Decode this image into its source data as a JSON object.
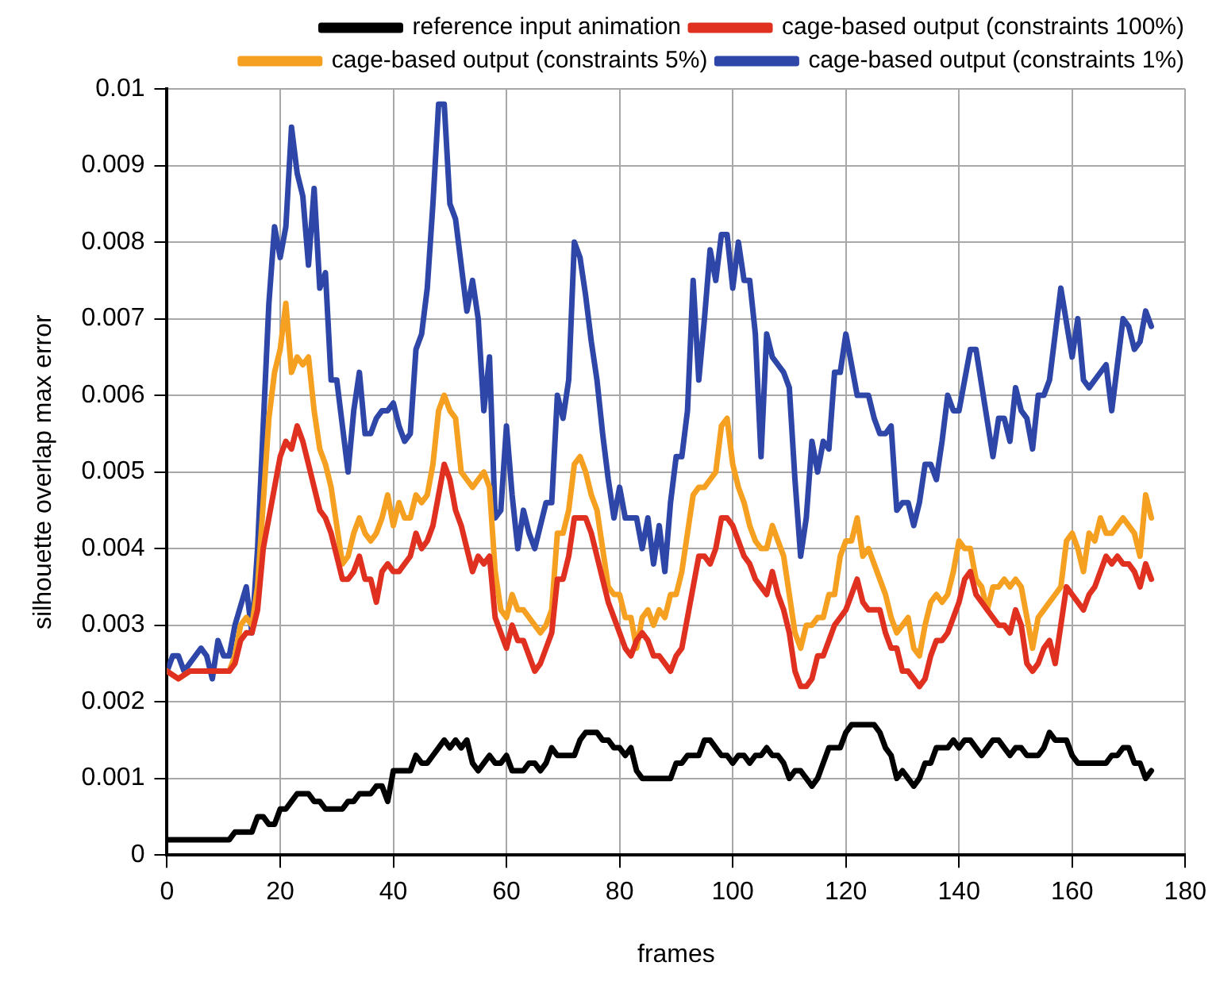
{
  "chart_data": {
    "type": "line",
    "xlabel": "frames",
    "ylabel": "silhouette overlap max error",
    "xlim": [
      0,
      180
    ],
    "xticks": [
      0,
      20,
      40,
      60,
      80,
      100,
      120,
      140,
      160,
      180
    ],
    "ylim": [
      0,
      0.01
    ],
    "yticks": [
      0,
      0.001,
      0.002,
      0.003,
      0.004,
      0.005,
      0.006,
      0.007,
      0.008,
      0.009,
      0.01
    ],
    "grid": true,
    "legend": "top right",
    "marker": "none",
    "line_style": "solid",
    "series": [
      {
        "name": "reference input animation",
        "color": "#000000",
        "x": [
          0,
          2,
          4,
          6,
          8,
          10,
          11,
          12,
          13,
          14,
          15,
          16,
          17,
          18,
          19,
          20,
          21,
          22,
          23,
          24,
          25,
          26,
          27,
          28,
          29,
          30,
          31,
          32,
          33,
          34,
          35,
          36,
          37,
          38,
          39,
          40,
          41,
          42,
          43,
          44,
          45,
          46,
          47,
          48,
          49,
          50,
          51,
          52,
          53,
          54,
          55,
          56,
          57,
          58,
          59,
          60,
          61,
          62,
          63,
          64,
          65,
          66,
          67,
          68,
          69,
          70,
          71,
          72,
          73,
          74,
          75,
          76,
          77,
          78,
          79,
          80,
          81,
          82,
          83,
          84,
          85,
          86,
          87,
          88,
          89,
          90,
          91,
          92,
          93,
          94,
          95,
          96,
          97,
          98,
          99,
          100,
          101,
          102,
          103,
          104,
          105,
          106,
          107,
          108,
          109,
          110,
          111,
          112,
          113,
          114,
          115,
          116,
          117,
          118,
          119,
          120,
          121,
          122,
          123,
          124,
          125,
          126,
          127,
          128,
          129,
          130,
          131,
          132,
          133,
          134,
          135,
          136,
          137,
          138,
          139,
          140,
          141,
          142,
          143,
          144,
          145,
          146,
          147,
          148,
          149,
          150,
          151,
          152,
          153,
          154,
          155,
          156,
          157,
          158,
          159,
          160,
          161,
          162,
          163,
          164,
          165,
          166,
          167,
          168,
          169,
          170,
          171,
          172,
          173,
          174
        ],
        "values": [
          0.0002,
          0.0002,
          0.0002,
          0.0002,
          0.0002,
          0.0002,
          0.0002,
          0.0003,
          0.0003,
          0.0003,
          0.0003,
          0.0005,
          0.0005,
          0.0004,
          0.0004,
          0.0006,
          0.0006,
          0.0007,
          0.0008,
          0.0008,
          0.0008,
          0.0007,
          0.0007,
          0.0006,
          0.0006,
          0.0006,
          0.0006,
          0.0007,
          0.0007,
          0.0008,
          0.0008,
          0.0008,
          0.0009,
          0.0009,
          0.0007,
          0.0011,
          0.0011,
          0.0011,
          0.0011,
          0.0013,
          0.0012,
          0.0012,
          0.0013,
          0.0014,
          0.0015,
          0.0014,
          0.0015,
          0.0014,
          0.0015,
          0.0012,
          0.0011,
          0.0012,
          0.0013,
          0.0012,
          0.0012,
          0.0013,
          0.0011,
          0.0011,
          0.0011,
          0.0012,
          0.0012,
          0.0011,
          0.0012,
          0.0014,
          0.0013,
          0.0013,
          0.0013,
          0.0013,
          0.0015,
          0.0016,
          0.0016,
          0.0016,
          0.0015,
          0.0015,
          0.0014,
          0.0014,
          0.0013,
          0.0014,
          0.0011,
          0.001,
          0.001,
          0.001,
          0.001,
          0.001,
          0.001,
          0.0012,
          0.0012,
          0.0013,
          0.0013,
          0.0013,
          0.0015,
          0.0015,
          0.0014,
          0.0013,
          0.0013,
          0.0012,
          0.0013,
          0.0013,
          0.0012,
          0.0013,
          0.0013,
          0.0014,
          0.0013,
          0.0013,
          0.0012,
          0.001,
          0.0011,
          0.0011,
          0.001,
          0.0009,
          0.001,
          0.0012,
          0.0014,
          0.0014,
          0.0014,
          0.0016,
          0.0017,
          0.0017,
          0.0017,
          0.0017,
          0.0017,
          0.0016,
          0.0014,
          0.0013,
          0.001,
          0.0011,
          0.001,
          0.0009,
          0.001,
          0.0012,
          0.0012,
          0.0014,
          0.0014,
          0.0014,
          0.0015,
          0.0014,
          0.0015,
          0.0015,
          0.0014,
          0.0013,
          0.0014,
          0.0015,
          0.0015,
          0.0014,
          0.0013,
          0.0014,
          0.0014,
          0.0013,
          0.0013,
          0.0013,
          0.0014,
          0.0016,
          0.0015,
          0.0015,
          0.0015,
          0.0013,
          0.0012,
          0.0012,
          0.0012,
          0.0012,
          0.0012,
          0.0012,
          0.0013,
          0.0013,
          0.0014,
          0.0014,
          0.0012,
          0.0012,
          0.001,
          0.0011
        ]
      },
      {
        "name": "cage-based output (constraints 100%)",
        "color": "#e03020",
        "x": [
          0,
          2,
          4,
          6,
          8,
          10,
          11,
          12,
          13,
          14,
          15,
          16,
          17,
          18,
          19,
          20,
          21,
          22,
          23,
          24,
          25,
          26,
          27,
          28,
          29,
          30,
          31,
          32,
          33,
          34,
          35,
          36,
          37,
          38,
          39,
          40,
          41,
          42,
          43,
          44,
          45,
          46,
          47,
          48,
          49,
          50,
          51,
          52,
          53,
          54,
          55,
          56,
          57,
          58,
          59,
          60,
          61,
          62,
          63,
          64,
          65,
          66,
          67,
          68,
          69,
          70,
          71,
          72,
          73,
          74,
          75,
          76,
          77,
          78,
          79,
          80,
          81,
          82,
          83,
          84,
          85,
          86,
          87,
          88,
          89,
          90,
          91,
          92,
          93,
          94,
          95,
          96,
          97,
          98,
          99,
          100,
          101,
          102,
          103,
          104,
          105,
          106,
          107,
          108,
          109,
          110,
          111,
          112,
          113,
          114,
          115,
          116,
          117,
          118,
          119,
          120,
          121,
          122,
          123,
          124,
          125,
          126,
          127,
          128,
          129,
          130,
          131,
          132,
          133,
          134,
          135,
          136,
          137,
          138,
          139,
          140,
          141,
          142,
          143,
          144,
          145,
          146,
          147,
          148,
          149,
          150,
          151,
          152,
          153,
          154,
          155,
          156,
          157,
          158,
          159,
          160,
          161,
          162,
          163,
          164,
          165,
          166,
          167,
          168,
          169,
          170,
          171,
          172,
          173,
          174
        ],
        "values": [
          0.0024,
          0.0023,
          0.0024,
          0.0024,
          0.0024,
          0.0024,
          0.0024,
          0.0025,
          0.0028,
          0.0029,
          0.0029,
          0.0032,
          0.004,
          0.0044,
          0.0048,
          0.0052,
          0.0054,
          0.0053,
          0.0056,
          0.0054,
          0.0051,
          0.0048,
          0.0045,
          0.0044,
          0.0042,
          0.0039,
          0.0036,
          0.0036,
          0.0037,
          0.0039,
          0.0036,
          0.0036,
          0.0033,
          0.0037,
          0.0038,
          0.0037,
          0.0037,
          0.0038,
          0.0039,
          0.0042,
          0.004,
          0.0041,
          0.0043,
          0.0047,
          0.0051,
          0.0049,
          0.0045,
          0.0043,
          0.004,
          0.0037,
          0.0039,
          0.0038,
          0.0039,
          0.0031,
          0.0029,
          0.0027,
          0.003,
          0.0028,
          0.0028,
          0.0026,
          0.0024,
          0.0025,
          0.0027,
          0.0029,
          0.0036,
          0.0036,
          0.0039,
          0.0044,
          0.0044,
          0.0044,
          0.0042,
          0.0039,
          0.0036,
          0.0033,
          0.0031,
          0.0029,
          0.0027,
          0.0026,
          0.0028,
          0.0029,
          0.0028,
          0.0026,
          0.0026,
          0.0025,
          0.0024,
          0.0026,
          0.0027,
          0.0031,
          0.0035,
          0.0039,
          0.0039,
          0.0038,
          0.004,
          0.0044,
          0.0044,
          0.0043,
          0.0041,
          0.0039,
          0.0038,
          0.0036,
          0.0035,
          0.0034,
          0.0037,
          0.0034,
          0.0032,
          0.0029,
          0.0024,
          0.0022,
          0.0022,
          0.0023,
          0.0026,
          0.0026,
          0.0028,
          0.003,
          0.0031,
          0.0032,
          0.0034,
          0.0036,
          0.0033,
          0.0032,
          0.0032,
          0.0032,
          0.0029,
          0.0027,
          0.0027,
          0.0024,
          0.0024,
          0.0023,
          0.0022,
          0.0023,
          0.0026,
          0.0028,
          0.0028,
          0.0029,
          0.0031,
          0.0033,
          0.0036,
          0.0037,
          0.0034,
          0.0033,
          0.0032,
          0.0031,
          0.003,
          0.003,
          0.0029,
          0.0032,
          0.003,
          0.0025,
          0.0024,
          0.0025,
          0.0027,
          0.0028,
          0.0025,
          0.003,
          0.0035,
          0.0034,
          0.0033,
          0.0032,
          0.0034,
          0.0035,
          0.0037,
          0.0039,
          0.0038,
          0.0039,
          0.0038,
          0.0038,
          0.0037,
          0.0035,
          0.0038,
          0.0036
        ]
      },
      {
        "name": "cage-based output (constraints 5%)",
        "color": "#f5a020",
        "x": [
          0,
          2,
          4,
          5,
          7,
          8,
          10,
          11,
          12,
          13,
          14,
          15,
          16,
          17,
          18,
          19,
          20,
          21,
          22,
          23,
          24,
          25,
          26,
          27,
          28,
          29,
          30,
          31,
          32,
          33,
          34,
          35,
          36,
          37,
          38,
          39,
          40,
          41,
          42,
          43,
          44,
          45,
          46,
          47,
          48,
          49,
          50,
          51,
          52,
          53,
          54,
          55,
          56,
          57,
          58,
          59,
          60,
          61,
          62,
          63,
          64,
          65,
          66,
          67,
          68,
          69,
          70,
          71,
          72,
          73,
          74,
          75,
          76,
          77,
          78,
          79,
          80,
          81,
          82,
          83,
          84,
          85,
          86,
          87,
          88,
          89,
          90,
          91,
          92,
          93,
          94,
          95,
          96,
          97,
          98,
          99,
          100,
          101,
          102,
          103,
          104,
          105,
          106,
          107,
          108,
          109,
          110,
          111,
          112,
          113,
          114,
          115,
          116,
          117,
          118,
          119,
          120,
          121,
          122,
          123,
          124,
          125,
          126,
          127,
          128,
          129,
          130,
          131,
          132,
          133,
          134,
          135,
          136,
          137,
          138,
          139,
          140,
          141,
          142,
          143,
          144,
          145,
          146,
          147,
          148,
          149,
          150,
          151,
          152,
          153,
          154,
          155,
          156,
          157,
          158,
          159,
          160,
          161,
          162,
          163,
          164,
          165,
          166,
          167,
          168,
          169,
          170,
          171,
          172,
          173,
          174
        ],
        "values": [
          0.0024,
          0.0023,
          0.0024,
          0.0024,
          null,
          null,
          0.0024,
          0.0024,
          0.0026,
          0.003,
          0.0031,
          0.003,
          0.0035,
          0.0046,
          0.0057,
          0.0063,
          0.0066,
          0.0072,
          0.0063,
          0.0065,
          0.0064,
          0.0065,
          0.0058,
          0.0053,
          0.0051,
          0.0048,
          0.0043,
          0.0038,
          0.0039,
          0.0042,
          0.0044,
          0.0042,
          0.0041,
          0.0042,
          0.0044,
          0.0047,
          0.0043,
          0.0046,
          0.0044,
          0.0044,
          0.0047,
          0.0046,
          0.0047,
          0.0051,
          0.0058,
          0.006,
          0.0058,
          0.0057,
          0.005,
          0.0049,
          0.0048,
          0.0049,
          0.005,
          0.0048,
          0.0037,
          0.0032,
          0.0031,
          0.0034,
          0.0032,
          0.0032,
          0.0031,
          0.003,
          0.0029,
          0.003,
          0.0032,
          0.0042,
          0.0042,
          0.0045,
          0.0051,
          0.0052,
          0.005,
          0.0047,
          0.0045,
          0.004,
          0.0035,
          0.0034,
          0.0034,
          0.0031,
          0.0031,
          0.0027,
          0.0031,
          0.0032,
          0.003,
          0.0032,
          0.0031,
          0.0034,
          0.0034,
          0.0037,
          0.0042,
          0.0047,
          0.0048,
          0.0048,
          0.0049,
          0.005,
          0.0056,
          0.0057,
          0.0051,
          0.0048,
          0.0046,
          0.0043,
          0.0041,
          0.004,
          0.004,
          0.0043,
          0.0041,
          0.0039,
          0.0034,
          0.0029,
          0.0027,
          0.003,
          0.003,
          0.0031,
          0.0031,
          0.0034,
          0.0034,
          0.0039,
          0.0041,
          0.0041,
          0.0044,
          0.0039,
          0.004,
          0.0038,
          0.0036,
          0.0034,
          0.0031,
          0.0029,
          0.003,
          0.0031,
          0.0027,
          0.0026,
          0.003,
          0.0033,
          0.0034,
          0.0033,
          0.0034,
          0.0037,
          0.0041,
          0.004,
          0.004,
          0.0036,
          0.0035,
          0.0032,
          0.0035,
          0.0035,
          0.0036,
          0.0035,
          0.0036,
          0.0035,
          0.0031,
          0.0027,
          0.0031,
          0.0032,
          0.0033,
          0.0034,
          0.0035,
          0.0041,
          0.0042,
          0.004,
          0.0037,
          0.0042,
          0.0041,
          0.0044,
          0.0042,
          0.0042,
          0.0043,
          0.0044,
          0.0043,
          0.0042,
          0.0039,
          0.0047,
          0.0044
        ]
      },
      {
        "name": "cage-based output (constraints 1%)",
        "color": "#2e46a8",
        "x": [
          0,
          1,
          2,
          3,
          4,
          6,
          7,
          8,
          9,
          10,
          11,
          12,
          14,
          15,
          16,
          17,
          18,
          19,
          20,
          21,
          22,
          23,
          24,
          25,
          26,
          27,
          28,
          29,
          30,
          31,
          32,
          33,
          34,
          35,
          36,
          37,
          38,
          39,
          40,
          41,
          42,
          43,
          44,
          45,
          46,
          47,
          48,
          49,
          50,
          51,
          52,
          53,
          54,
          55,
          56,
          57,
          58,
          59,
          60,
          61,
          62,
          63,
          64,
          65,
          66,
          67,
          68,
          69,
          70,
          71,
          72,
          73,
          74,
          75,
          76,
          77,
          78,
          79,
          80,
          81,
          82,
          83,
          84,
          85,
          86,
          87,
          88,
          89,
          90,
          91,
          92,
          93,
          94,
          95,
          96,
          97,
          98,
          99,
          100,
          101,
          102,
          103,
          104,
          105,
          106,
          107,
          108,
          109,
          110,
          111,
          112,
          113,
          114,
          115,
          116,
          117,
          118,
          119,
          120,
          121,
          122,
          124,
          125,
          126,
          127,
          128,
          129,
          130,
          131,
          132,
          133,
          134,
          135,
          136,
          137,
          138,
          139,
          140,
          142,
          143,
          146,
          147,
          148,
          149,
          150,
          151,
          152,
          153,
          154,
          155,
          156,
          157,
          158,
          160,
          161,
          162,
          163,
          164,
          166,
          167,
          169,
          170,
          171,
          172,
          173,
          174
        ],
        "values": [
          0.0024,
          0.0026,
          0.0026,
          0.0024,
          0.0025,
          0.0027,
          0.0026,
          0.0023,
          0.0028,
          0.0026,
          0.0026,
          0.003,
          0.0035,
          0.0029,
          0.004,
          0.0056,
          0.0072,
          0.0082,
          0.0078,
          0.0082,
          0.0095,
          0.0089,
          0.0086,
          0.0077,
          0.0087,
          0.0074,
          0.0076,
          0.0062,
          0.0062,
          0.0056,
          0.005,
          0.0058,
          0.0063,
          0.0055,
          0.0055,
          0.0057,
          0.0058,
          0.0058,
          0.0059,
          0.0056,
          0.0054,
          0.0055,
          0.0066,
          0.0068,
          0.0074,
          0.0085,
          0.0098,
          0.0098,
          0.0085,
          0.0083,
          0.0077,
          0.0071,
          0.0075,
          0.007,
          0.0058,
          0.0065,
          0.0044,
          0.0045,
          0.0056,
          0.0047,
          0.004,
          0.0045,
          0.0042,
          0.004,
          0.0043,
          0.0046,
          0.0046,
          0.006,
          0.0057,
          0.0062,
          0.008,
          0.0078,
          0.0073,
          0.0067,
          0.0062,
          0.0055,
          0.0049,
          0.0044,
          0.0048,
          0.0044,
          0.0044,
          0.0044,
          0.004,
          0.0044,
          0.0038,
          0.0043,
          0.0037,
          0.0046,
          0.0052,
          0.0052,
          0.0058,
          0.0075,
          0.0062,
          0.007,
          0.0079,
          0.0075,
          0.0081,
          0.0081,
          0.0074,
          0.008,
          0.0075,
          0.0075,
          0.0068,
          0.0052,
          0.0068,
          0.0065,
          0.0064,
          0.0063,
          0.0061,
          0.0049,
          0.0039,
          0.0044,
          0.0054,
          0.005,
          0.0054,
          0.0053,
          0.0063,
          0.0063,
          0.0068,
          0.0064,
          0.006,
          0.006,
          0.0057,
          0.0055,
          0.0055,
          0.0056,
          0.0045,
          0.0046,
          0.0046,
          0.0043,
          0.0046,
          0.0051,
          0.0051,
          0.0049,
          0.0054,
          0.006,
          0.0058,
          0.0058,
          0.0066,
          0.0066,
          0.0052,
          0.0057,
          0.0057,
          0.0054,
          0.0061,
          0.0058,
          0.0057,
          0.0053,
          0.006,
          0.006,
          0.0062,
          0.0068,
          0.0074,
          0.0065,
          0.007,
          0.0062,
          0.0061,
          0.0062,
          0.0064,
          0.0058,
          0.007,
          0.0069,
          0.0066,
          0.0067,
          0.0071,
          0.0069
        ]
      }
    ]
  }
}
